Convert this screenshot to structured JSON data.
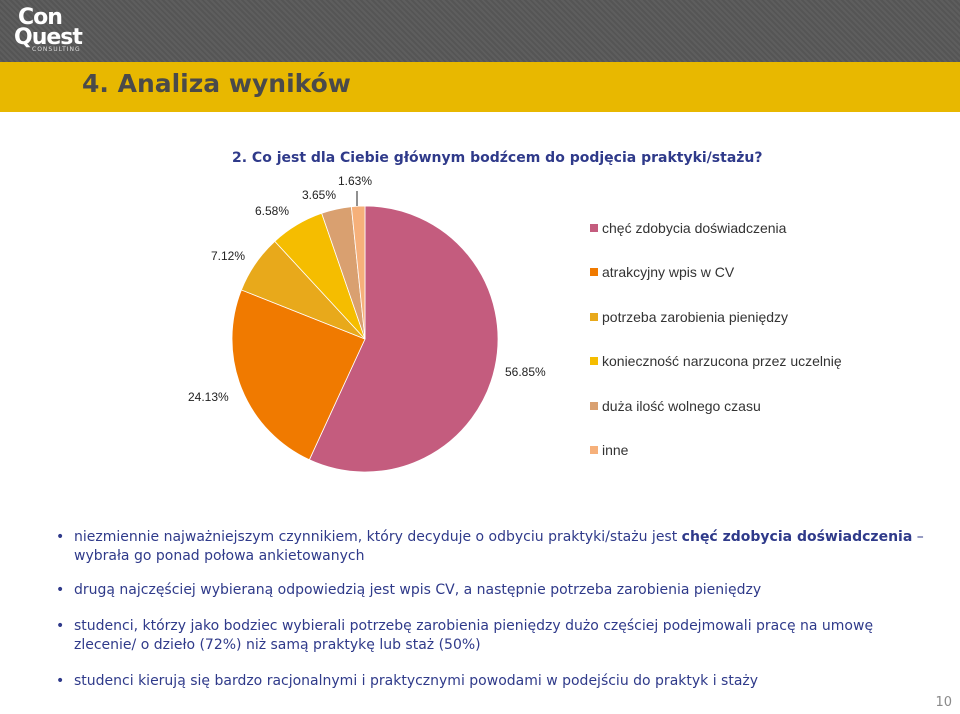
{
  "header": {
    "logo": {
      "line1": "Con",
      "line2": "Quest",
      "line3": "CONSULTING"
    },
    "title": "4. Analiza wyników"
  },
  "chart_data": {
    "type": "pie",
    "title": "2. Co jest dla Ciebie głównym bodźcem do podjęcia praktyki/stażu?",
    "slices": [
      {
        "label": "chęć zdobycia doświadczenia",
        "value": 56.85,
        "value_label": "56.85%",
        "color": "#c45c7e"
      },
      {
        "label": "atrakcyjny wpis w CV",
        "value": 24.13,
        "value_label": "24.13%",
        "color": "#f07a00"
      },
      {
        "label": "potrzeba zarobienia pieniędzy",
        "value": 7.12,
        "value_label": "7.12%",
        "color": "#e8a91b"
      },
      {
        "label": "konieczność narzucona przez uczelnię",
        "value": 6.58,
        "value_label": "6.58%",
        "color": "#f5bd00"
      },
      {
        "label": "duża ilość wolnego czasu",
        "value": 3.65,
        "value_label": "3.65%",
        "color": "#d9a070"
      },
      {
        "label": "inne",
        "value": 1.63,
        "value_label": "1.63%",
        "color": "#f6b07a"
      }
    ],
    "legend_position": "right"
  },
  "bullets": [
    {
      "pre": "niezmiennie najważniejszym czynnikiem, który decyduje o odbyciu praktyki/stażu jest ",
      "bold": "chęć zdobycia doświadczenia",
      "post": " – wybrała go ponad połowa ankietowanych"
    },
    {
      "pre": "drugą najczęściej wybieraną odpowiedzią jest wpis CV, a następnie potrzeba zarobienia pieniędzy",
      "bold": "",
      "post": ""
    },
    {
      "pre": "studenci, którzy jako bodziec wybierali potrzebę zarobienia pieniędzy dużo częściej podejmowali pracę na umowę zlecenie/ o dzieło (72%) niż samą praktykę lub staż (50%)",
      "bold": "",
      "post": ""
    },
    {
      "pre": "studenci kierują się bardzo racjonalnymi i praktycznymi powodami w podejściu do praktyk i staży",
      "bold": "",
      "post": ""
    }
  ],
  "page_number": "10"
}
